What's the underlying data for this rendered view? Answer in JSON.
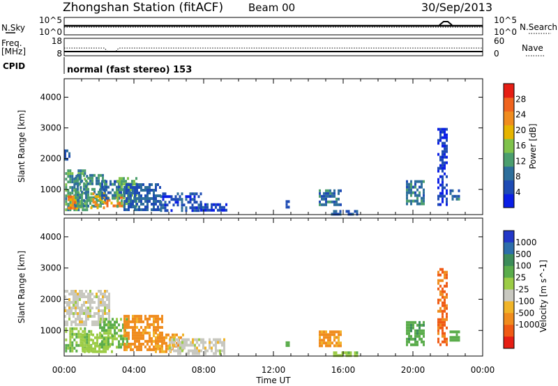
{
  "header": {
    "station": "Zhongshan Station (fitACF)",
    "beam": "Beam 00",
    "date": "30/Sep/2013"
  },
  "sky_panel": {
    "left_label": "N.Sky",
    "right_label": "N.Search",
    "left_ticks": [
      "10^5",
      "10^0"
    ],
    "right_ticks": [
      "10^5",
      "10^0"
    ]
  },
  "freq_panel": {
    "left_label_top": "Freq.",
    "left_label_bottom": "[MHz]",
    "right_label": "Nave",
    "left_ticks": [
      "18",
      "8"
    ],
    "right_ticks": [
      "60",
      "0"
    ]
  },
  "cpid": {
    "label": "CPID",
    "text": "normal (fast stereo) 153"
  },
  "colors": {
    "power_scale": [
      "#0a1ee6",
      "#1e4bb4",
      "#2d6e9b",
      "#4b9e6e",
      "#7fc24b",
      "#e6b400",
      "#f08c1e",
      "#f0641e",
      "#e61e14"
    ],
    "velocity_scale": [
      "#2237c8",
      "#2d6eaa",
      "#3c8c5a",
      "#5aac4b",
      "#9ccc46",
      "#c8c8c0",
      "#f0b428",
      "#f08c1e",
      "#f05a14",
      "#e61e14"
    ]
  },
  "chart_data": [
    {
      "type": "heatmap",
      "panel": "power",
      "xlabel": "",
      "ylabel": "Slant Range [km]",
      "xlim": [
        0,
        24
      ],
      "ylim": [
        180,
        4600
      ],
      "ytick_labels": [
        "1000",
        "2000",
        "3000",
        "4000"
      ],
      "ytick_values": [
        1000,
        2000,
        3000,
        4000
      ],
      "colorbar": {
        "label": "Power [dB]",
        "range": [
          0,
          32
        ],
        "tick_labels": [
          "4",
          "8",
          "12",
          "16",
          "20",
          "24",
          "28"
        ],
        "tick_values": [
          4,
          8,
          12,
          16,
          20,
          24,
          28
        ]
      },
      "regions": [
        {
          "t": [
            0.05,
            1.3
          ],
          "r": [
            350,
            1650
          ],
          "value": 14
        },
        {
          "t": [
            0.2,
            0.9
          ],
          "r": [
            400,
            800
          ],
          "value": 26
        },
        {
          "t": [
            0.6,
            2.4
          ],
          "r": [
            500,
            1500
          ],
          "value": 12
        },
        {
          "t": [
            1.5,
            2.3
          ],
          "r": [
            400,
            900
          ],
          "value": 22
        },
        {
          "t": [
            2.3,
            3.4
          ],
          "r": [
            420,
            780
          ],
          "value": 27
        },
        {
          "t": [
            2.0,
            3.3
          ],
          "r": [
            700,
            1300
          ],
          "value": 10
        },
        {
          "t": [
            3.0,
            4.2
          ],
          "r": [
            450,
            1400
          ],
          "value": 16
        },
        {
          "t": [
            3.4,
            5.5
          ],
          "r": [
            350,
            1200
          ],
          "value": 8
        },
        {
          "t": [
            5.5,
            7.8
          ],
          "r": [
            300,
            900
          ],
          "value": 6
        },
        {
          "t": [
            7.8,
            9.3
          ],
          "r": [
            300,
            550
          ],
          "value": 5
        },
        {
          "t": [
            0.0,
            0.35
          ],
          "r": [
            2000,
            2300
          ],
          "value": 5
        },
        {
          "t": [
            12.7,
            12.9
          ],
          "r": [
            400,
            650
          ],
          "value": 6
        },
        {
          "t": [
            14.6,
            15.9
          ],
          "r": [
            480,
            1000
          ],
          "value": 9
        },
        {
          "t": [
            15.3,
            16.8
          ],
          "r": [
            200,
            330
          ],
          "value": 7
        },
        {
          "t": [
            19.6,
            20.6
          ],
          "r": [
            500,
            1300
          ],
          "value": 10
        },
        {
          "t": [
            21.4,
            21.9
          ],
          "r": [
            500,
            3000
          ],
          "value": 4
        },
        {
          "t": [
            22.1,
            22.7
          ],
          "r": [
            650,
            1000
          ],
          "value": 9
        }
      ]
    },
    {
      "type": "heatmap",
      "panel": "velocity",
      "xlabel": "Time UT",
      "ylabel": "Slant Range [km]",
      "xlim": [
        0,
        24
      ],
      "ylim": [
        180,
        4600
      ],
      "xtick_labels": [
        "00:00",
        "04:00",
        "08:00",
        "12:00",
        "16:00",
        "20:00",
        "00:00"
      ],
      "xtick_values": [
        0,
        4,
        8,
        12,
        16,
        20,
        24
      ],
      "ytick_labels": [
        "1000",
        "2000",
        "3000",
        "4000"
      ],
      "ytick_values": [
        1000,
        2000,
        3000,
        4000
      ],
      "colorbar": {
        "label": "Velocity [m s^-1]",
        "tick_labels": [
          "1000",
          "500",
          "100",
          "25",
          "-25",
          "-100",
          "-500",
          "-1000"
        ]
      },
      "regions": [
        {
          "t": [
            0.0,
            2.6
          ],
          "r": [
            1200,
            2300
          ],
          "value": 0
        },
        {
          "t": [
            0.05,
            1.6
          ],
          "r": [
            300,
            1100
          ],
          "value": 100
        },
        {
          "t": [
            1.0,
            2.8
          ],
          "r": [
            350,
            900
          ],
          "value": 60
        },
        {
          "t": [
            2.0,
            3.6
          ],
          "r": [
            500,
            1400
          ],
          "value": 110
        },
        {
          "t": [
            3.4,
            5.6
          ],
          "r": [
            350,
            1500
          ],
          "value": -150
        },
        {
          "t": [
            5.2,
            6.8
          ],
          "r": [
            300,
            900
          ],
          "value": -110
        },
        {
          "t": [
            6.0,
            9.2
          ],
          "r": [
            280,
            750
          ],
          "value": 0
        },
        {
          "t": [
            12.7,
            12.9
          ],
          "r": [
            400,
            650
          ],
          "value": 120
        },
        {
          "t": [
            14.6,
            15.9
          ],
          "r": [
            480,
            1000
          ],
          "value": -130
        },
        {
          "t": [
            15.3,
            16.8
          ],
          "r": [
            200,
            330
          ],
          "value": 80
        },
        {
          "t": [
            19.6,
            20.6
          ],
          "r": [
            500,
            1300
          ],
          "value": 200
        },
        {
          "t": [
            21.4,
            21.9
          ],
          "r": [
            500,
            3000
          ],
          "value": -300
        },
        {
          "t": [
            22.1,
            22.7
          ],
          "r": [
            650,
            1000
          ],
          "value": 180
        }
      ]
    }
  ]
}
